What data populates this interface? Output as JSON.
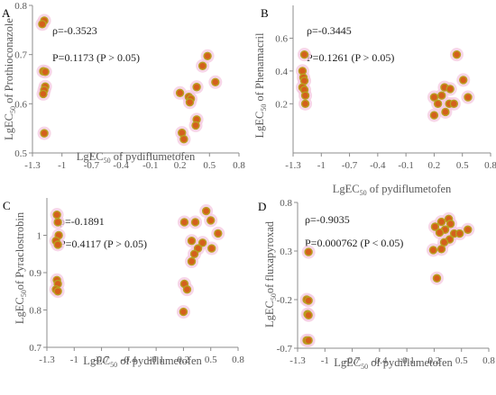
{
  "colors": {
    "point_fill": "#D4601C",
    "point_edge": "#B8A020",
    "halo": "#F4C8E0",
    "axis": "#8C8C8C",
    "text": "#595959"
  },
  "chart_data": [
    {
      "type": "scatter",
      "panel": "A",
      "xlabel_main": "LgEC",
      "xlabel_sub": "50",
      "xlabel_rest": " of pydiflumetofen",
      "ylabel_main": "LgEC",
      "ylabel_sub": "50",
      "ylabel_rest": " of Prothioconazole",
      "xlim": [
        -1.3,
        0.8
      ],
      "ylim": [
        0.5,
        0.8
      ],
      "xticks": [
        -1.3,
        -1,
        -0.7,
        -0.4,
        -0.1,
        0.2,
        0.5,
        0.8
      ],
      "xtick_labels": [
        "-1.3",
        "-1",
        "-0.7",
        "-0.4",
        "-0.1",
        "0.2",
        "0.5",
        "0.8"
      ],
      "yticks": [
        0.5,
        0.6,
        0.7,
        0.8
      ],
      "ytick_labels": [
        "0.5",
        "0.6",
        "0.7",
        "0.8"
      ],
      "annotations": [
        "ρ=-0.3523",
        "P=0.1173 (P > 0.05)"
      ],
      "points": [
        {
          "x": -1.18,
          "y": 0.769
        },
        {
          "x": -1.2,
          "y": 0.762
        },
        {
          "x": -1.19,
          "y": 0.666
        },
        {
          "x": -1.17,
          "y": 0.665
        },
        {
          "x": -1.17,
          "y": 0.635
        },
        {
          "x": -1.18,
          "y": 0.628
        },
        {
          "x": -1.19,
          "y": 0.62
        },
        {
          "x": -1.18,
          "y": 0.54
        },
        {
          "x": 0.2,
          "y": 0.622
        },
        {
          "x": 0.29,
          "y": 0.614
        },
        {
          "x": 0.31,
          "y": 0.61
        },
        {
          "x": 0.3,
          "y": 0.603
        },
        {
          "x": 0.37,
          "y": 0.634
        },
        {
          "x": 0.43,
          "y": 0.677
        },
        {
          "x": 0.48,
          "y": 0.697
        },
        {
          "x": 0.56,
          "y": 0.644
        },
        {
          "x": 0.37,
          "y": 0.568
        },
        {
          "x": 0.36,
          "y": 0.556
        },
        {
          "x": 0.22,
          "y": 0.541
        },
        {
          "x": 0.24,
          "y": 0.528
        }
      ]
    },
    {
      "type": "scatter",
      "panel": "B",
      "xlabel_main": "LgEC",
      "xlabel_sub": "50",
      "xlabel_rest": " of pydiflumetofen",
      "ylabel_main": "LgEC",
      "ylabel_sub": "50",
      "ylabel_rest": " of Phenamacril",
      "xlim": [
        -1.3,
        0.8
      ],
      "ylim": [
        -0.1,
        0.8
      ],
      "xticks": [
        -1.3,
        -1,
        -0.7,
        -0.4,
        -0.1,
        0.2,
        0.5,
        0.8
      ],
      "xtick_labels": [
        "-1.3",
        "-1",
        "-0.7",
        "-0.4",
        "-0.1",
        "0.2",
        "0.5",
        "0.8"
      ],
      "yticks": [
        0.2,
        0.4,
        0.6
      ],
      "ytick_labels": [
        "0.2",
        "0.4",
        "0.6"
      ],
      "annotations": [
        "ρ=-0.3445",
        "P=0.1261 (P > 0.05)"
      ],
      "points": [
        {
          "x": -1.18,
          "y": 0.5
        },
        {
          "x": -1.2,
          "y": 0.4
        },
        {
          "x": -1.19,
          "y": 0.36
        },
        {
          "x": -1.18,
          "y": 0.34
        },
        {
          "x": -1.2,
          "y": 0.3
        },
        {
          "x": -1.18,
          "y": 0.285
        },
        {
          "x": -1.17,
          "y": 0.25
        },
        {
          "x": -1.17,
          "y": 0.2
        },
        {
          "x": 0.44,
          "y": 0.5
        },
        {
          "x": 0.51,
          "y": 0.345
        },
        {
          "x": 0.31,
          "y": 0.3
        },
        {
          "x": 0.37,
          "y": 0.29
        },
        {
          "x": 0.28,
          "y": 0.25
        },
        {
          "x": 0.2,
          "y": 0.24
        },
        {
          "x": 0.56,
          "y": 0.24
        },
        {
          "x": 0.36,
          "y": 0.2
        },
        {
          "x": 0.41,
          "y": 0.2
        },
        {
          "x": 0.24,
          "y": 0.2
        },
        {
          "x": 0.32,
          "y": 0.15
        },
        {
          "x": 0.2,
          "y": 0.13
        }
      ]
    },
    {
      "type": "scatter",
      "panel": "C",
      "xlabel_main": "LgEC",
      "xlabel_sub": "50",
      "xlabel_rest": " of pydiflumetofen",
      "ylabel_main": "LgEC",
      "ylabel_sub": "50",
      "ylabel_rest": "of Pyraclostrobin",
      "xlim": [
        -1.3,
        0.8
      ],
      "ylim": [
        0.7,
        1.1
      ],
      "xticks": [
        -1.3,
        -1,
        -0.7,
        -0.4,
        -0.1,
        0.2,
        0.5,
        0.8
      ],
      "xtick_labels": [
        "-1.3",
        "-1",
        "-0.7",
        "-0.4",
        "-0.1",
        "0.2",
        "0.5",
        "0.8"
      ],
      "yticks": [
        0.7,
        0.8,
        0.9,
        1.0
      ],
      "ytick_labels": [
        "0.7",
        "0.8",
        "0.9",
        "1"
      ],
      "annotations": [
        "ρ=-0.1891",
        "P=0.4117 (P > 0.05)"
      ],
      "points": [
        {
          "x": -1.19,
          "y": 1.055
        },
        {
          "x": -1.18,
          "y": 1.035
        },
        {
          "x": -1.17,
          "y": 1.0
        },
        {
          "x": -1.2,
          "y": 0.985
        },
        {
          "x": -1.18,
          "y": 0.975
        },
        {
          "x": -1.19,
          "y": 0.88
        },
        {
          "x": -1.18,
          "y": 0.87
        },
        {
          "x": -1.2,
          "y": 0.855
        },
        {
          "x": -1.18,
          "y": 0.85
        },
        {
          "x": 0.21,
          "y": 1.035
        },
        {
          "x": 0.33,
          "y": 1.035
        },
        {
          "x": 0.45,
          "y": 1.065
        },
        {
          "x": 0.5,
          "y": 1.04
        },
        {
          "x": 0.29,
          "y": 0.985
        },
        {
          "x": 0.41,
          "y": 0.98
        },
        {
          "x": 0.36,
          "y": 0.965
        },
        {
          "x": 0.51,
          "y": 0.965
        },
        {
          "x": 0.32,
          "y": 0.95
        },
        {
          "x": 0.58,
          "y": 1.005
        },
        {
          "x": 0.29,
          "y": 0.93
        },
        {
          "x": 0.21,
          "y": 0.87
        },
        {
          "x": 0.24,
          "y": 0.855
        },
        {
          "x": 0.2,
          "y": 0.795
        }
      ]
    },
    {
      "type": "scatter",
      "panel": "D",
      "xlabel_main": "LgEC",
      "xlabel_sub": "50",
      "xlabel_rest": " of pydiflumetofen",
      "ylabel_main": "LgEC",
      "ylabel_sub": "50",
      "ylabel_rest": "of fluxapyroxad",
      "xlim": [
        -1.3,
        0.8
      ],
      "ylim": [
        -0.7,
        0.8
      ],
      "xticks": [
        -1.3,
        -1,
        -0.7,
        -0.4,
        -0.1,
        0.2,
        0.5,
        0.8
      ],
      "xtick_labels": [
        "-1.3",
        "-1",
        "-0.7",
        "-0.4",
        "-0.1",
        "0.2",
        "0.5",
        "0.8"
      ],
      "yticks": [
        -0.7,
        -0.2,
        0.3,
        0.8
      ],
      "ytick_labels": [
        "-0.7",
        "-0.2",
        "0.3",
        "0.8"
      ],
      "annotations": [
        "ρ=-0.9035",
        "P=0.000762 (P < 0.05)"
      ],
      "points": [
        {
          "x": -1.18,
          "y": 0.29
        },
        {
          "x": -1.2,
          "y": -0.2
        },
        {
          "x": -1.18,
          "y": -0.21
        },
        {
          "x": -1.19,
          "y": -0.35
        },
        {
          "x": -1.18,
          "y": -0.36
        },
        {
          "x": -1.2,
          "y": -0.62
        },
        {
          "x": -1.18,
          "y": -0.62
        },
        {
          "x": 0.36,
          "y": 0.63
        },
        {
          "x": 0.28,
          "y": 0.6
        },
        {
          "x": 0.38,
          "y": 0.58
        },
        {
          "x": 0.21,
          "y": 0.55
        },
        {
          "x": 0.32,
          "y": 0.52
        },
        {
          "x": 0.42,
          "y": 0.48
        },
        {
          "x": 0.48,
          "y": 0.48
        },
        {
          "x": 0.57,
          "y": 0.52
        },
        {
          "x": 0.26,
          "y": 0.49
        },
        {
          "x": 0.37,
          "y": 0.42
        },
        {
          "x": 0.31,
          "y": 0.39
        },
        {
          "x": 0.28,
          "y": 0.32
        },
        {
          "x": 0.19,
          "y": 0.31
        },
        {
          "x": 0.23,
          "y": 0.02
        }
      ]
    }
  ]
}
